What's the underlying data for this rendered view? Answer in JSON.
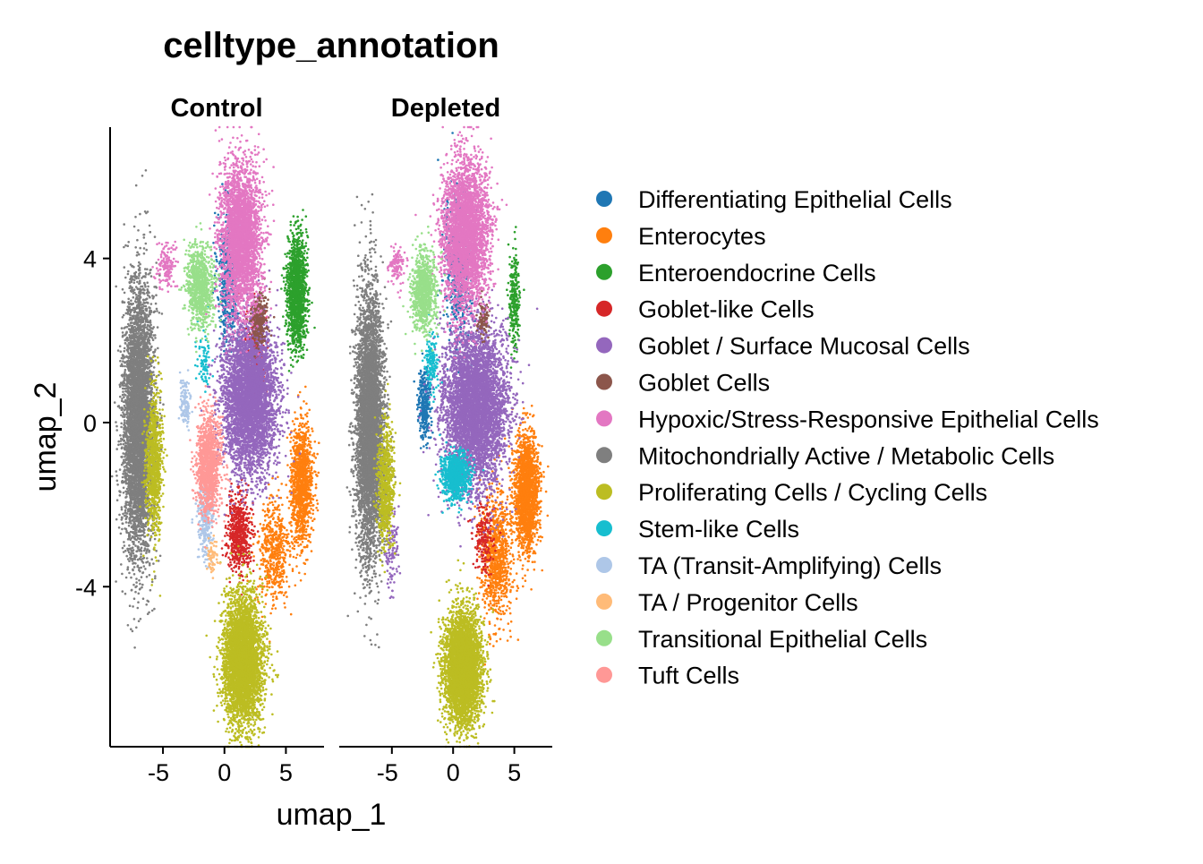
{
  "chart_data": {
    "type": "scatter",
    "title": "celltype_annotation",
    "xlabel": "umap_1",
    "ylabel": "umap_2",
    "panels": [
      "Control",
      "Depleted"
    ],
    "xlim": [
      -9.3,
      8.1
    ],
    "ylim": [
      -7.9,
      7.2
    ],
    "x_ticks": [
      -5,
      0,
      5
    ],
    "x_tick_labels": [
      "-5",
      "0",
      "5"
    ],
    "y_ticks": [
      -4,
      0,
      4
    ],
    "y_tick_labels": [
      "-4",
      "0",
      "4"
    ],
    "grid": false,
    "legend_position": "right",
    "series": [
      {
        "name": "Differentiating Epithelial Cells",
        "color": "#1f77b4",
        "clusters": {
          "Control": [
            [
              0.3,
              3.5,
              0.8,
              1.5,
              500
            ]
          ],
          "Depleted": [
            [
              0.4,
              3.8,
              1.0,
              1.6,
              600
            ],
            [
              -2.3,
              0.5,
              0.5,
              0.8,
              300
            ]
          ]
        }
      },
      {
        "name": "Enterocytes",
        "color": "#ff7f0e",
        "clusters": {
          "Control": [
            [
              6.3,
              -1.5,
              0.8,
              1.3,
              1200
            ],
            [
              4.0,
              -3.2,
              1.2,
              1.2,
              500
            ]
          ],
          "Depleted": [
            [
              6.0,
              -1.7,
              0.9,
              1.3,
              1800
            ],
            [
              3.5,
              -3.3,
              1.2,
              1.4,
              900
            ]
          ]
        }
      },
      {
        "name": "Enteroendocrine Cells",
        "color": "#2ca02c",
        "clusters": {
          "Control": [
            [
              5.9,
              3.2,
              0.7,
              1.2,
              1500
            ]
          ],
          "Depleted": [
            [
              5.0,
              3.0,
              0.4,
              1.0,
              250
            ]
          ]
        }
      },
      {
        "name": "Goblet-like Cells",
        "color": "#d62728",
        "clusters": {
          "Control": [
            [
              1.2,
              -2.7,
              0.9,
              0.8,
              600
            ],
            [
              2.5,
              1.8,
              0.8,
              1.0,
              250
            ]
          ],
          "Depleted": [
            [
              2.5,
              -2.8,
              0.8,
              0.8,
              180
            ]
          ]
        }
      },
      {
        "name": "Goblet / Surface Mucosal Cells",
        "color": "#9467bd",
        "clusters": {
          "Control": [
            [
              2.0,
              0.6,
              2.0,
              1.6,
              4500
            ]
          ],
          "Depleted": [
            [
              1.8,
              0.4,
              2.3,
              1.7,
              5000
            ],
            [
              -5.0,
              -3.0,
              0.5,
              1.0,
              120
            ]
          ]
        }
      },
      {
        "name": "Goblet Cells",
        "color": "#8c564b",
        "clusters": {
          "Control": [
            [
              2.8,
              2.5,
              0.6,
              0.6,
              250
            ]
          ],
          "Depleted": [
            [
              2.5,
              2.5,
              0.5,
              0.5,
              90
            ]
          ]
        }
      },
      {
        "name": "Hypoxic/Stress-Responsive Epithelial Cells",
        "color": "#e377c2",
        "clusters": {
          "Control": [
            [
              1.3,
              4.5,
              1.5,
              1.6,
              3200
            ],
            [
              -4.8,
              3.8,
              0.7,
              0.5,
              150
            ]
          ],
          "Depleted": [
            [
              1.0,
              4.6,
              1.7,
              1.6,
              3600
            ],
            [
              -4.6,
              3.8,
              0.6,
              0.4,
              120
            ]
          ]
        }
      },
      {
        "name": "Mitochondrially Active / Metabolic Cells",
        "color": "#7f7f7f",
        "clusters": {
          "Control": [
            [
              -7.0,
              0.0,
              1.1,
              2.9,
              5200
            ]
          ],
          "Depleted": [
            [
              -6.8,
              0.0,
              1.0,
              2.9,
              4800
            ]
          ]
        }
      },
      {
        "name": "Proliferating Cells / Cycling Cells",
        "color": "#bcbd22",
        "clusters": {
          "Control": [
            [
              -5.7,
              -1.0,
              0.6,
              1.6,
              900
            ],
            [
              1.5,
              -5.8,
              1.4,
              1.4,
              4200
            ]
          ],
          "Depleted": [
            [
              -5.5,
              -1.5,
              0.6,
              1.4,
              700
            ],
            [
              0.8,
              -6.0,
              1.3,
              1.2,
              4600
            ]
          ]
        }
      },
      {
        "name": "Stem-like Cells",
        "color": "#17becf",
        "clusters": {
          "Control": [
            [
              -1.7,
              1.5,
              0.6,
              0.8,
              80
            ]
          ],
          "Depleted": [
            [
              0.2,
              -1.3,
              1.0,
              0.5,
              900
            ],
            [
              -1.8,
              1.5,
              0.5,
              0.6,
              150
            ]
          ]
        }
      },
      {
        "name": "TA (Transit-Amplifying) Cells",
        "color": "#aec7e8",
        "clusters": {
          "Control": [
            [
              -1.5,
              -2.3,
              0.6,
              0.9,
              300
            ],
            [
              -3.2,
              0.5,
              0.4,
              0.6,
              120
            ]
          ],
          "Depleted": []
        }
      },
      {
        "name": "TA / Progenitor Cells",
        "color": "#ffbb78",
        "clusters": {
          "Control": [
            [
              -1.0,
              -3.3,
              0.4,
              0.4,
              60
            ]
          ],
          "Depleted": []
        }
      },
      {
        "name": "Transitional Epithelial Cells",
        "color": "#98df8a",
        "clusters": {
          "Control": [
            [
              -2.0,
              3.3,
              1.0,
              0.9,
              900
            ]
          ],
          "Depleted": [
            [
              -2.4,
              3.2,
              0.9,
              0.9,
              900
            ]
          ]
        }
      },
      {
        "name": "Tuft Cells",
        "color": "#ff9896",
        "clusters": {
          "Control": [
            [
              -1.3,
              -1.0,
              0.9,
              1.1,
              1200
            ]
          ],
          "Depleted": []
        }
      }
    ]
  }
}
